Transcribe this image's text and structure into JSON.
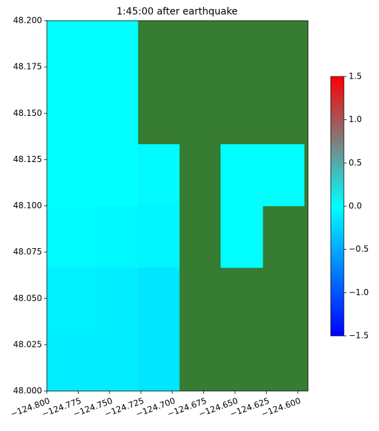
{
  "chart_data": {
    "type": "heatmap",
    "title": "1:45:00 after earthquake",
    "x_edges": [
      -124.8,
      -124.7604,
      -124.7275,
      -124.6945,
      -124.6615,
      -124.628,
      -124.595,
      -124.5918
    ],
    "y_edges": [
      48.2,
      48.1667,
      48.1333,
      48.1,
      48.0667,
      48.0333,
      48.0
    ],
    "values": [
      [
        0,
        0,
        null,
        null,
        null,
        null,
        null
      ],
      [
        0,
        0,
        null,
        null,
        null,
        null,
        null
      ],
      [
        0,
        0,
        -0.03,
        null,
        0,
        0,
        null
      ],
      [
        -0.02,
        -0.04,
        -0.06,
        null,
        0,
        null,
        null
      ],
      [
        -0.08,
        -0.1,
        -0.15,
        null,
        null,
        null,
        null
      ],
      [
        -0.1,
        -0.1,
        -0.15,
        null,
        null,
        null,
        null
      ]
    ],
    "nan_color": "#367d33",
    "xlim": [
      -124.8,
      -124.5918
    ],
    "ylim": [
      48.0,
      48.2
    ],
    "xticks": [
      {
        "value": -124.8,
        "label": "−124.800"
      },
      {
        "value": -124.775,
        "label": "−124.775"
      },
      {
        "value": -124.75,
        "label": "−124.750"
      },
      {
        "value": -124.725,
        "label": "−124.725"
      },
      {
        "value": -124.7,
        "label": "−124.700"
      },
      {
        "value": -124.675,
        "label": "−124.675"
      },
      {
        "value": -124.65,
        "label": "−124.650"
      },
      {
        "value": -124.625,
        "label": "−124.625"
      },
      {
        "value": -124.6,
        "label": "−124.600"
      }
    ],
    "yticks": [
      {
        "value": 48.0,
        "label": "48.000"
      },
      {
        "value": 48.025,
        "label": "48.025"
      },
      {
        "value": 48.05,
        "label": "48.050"
      },
      {
        "value": 48.075,
        "label": "48.075"
      },
      {
        "value": 48.1,
        "label": "48.100"
      },
      {
        "value": 48.125,
        "label": "48.125"
      },
      {
        "value": 48.15,
        "label": "48.150"
      },
      {
        "value": 48.175,
        "label": "48.175"
      },
      {
        "value": 48.2,
        "label": "48.200"
      }
    ],
    "colorscale": [
      [
        -1.5,
        "#0000ff"
      ],
      [
        0,
        "#00ffff"
      ],
      [
        0.75,
        "#7f7f7f"
      ],
      [
        1.5,
        "#ff0000"
      ]
    ],
    "clim": [
      -1.5,
      1.5
    ],
    "cticks": [
      {
        "value": -1.5,
        "label": "−1.5"
      },
      {
        "value": -1.0,
        "label": "−1.0"
      },
      {
        "value": -0.5,
        "label": "−0.5"
      },
      {
        "value": 0.0,
        "label": "0.0"
      },
      {
        "value": 0.5,
        "label": "0.5"
      },
      {
        "value": 1.0,
        "label": "1.0"
      },
      {
        "value": 1.5,
        "label": "1.5"
      }
    ]
  }
}
